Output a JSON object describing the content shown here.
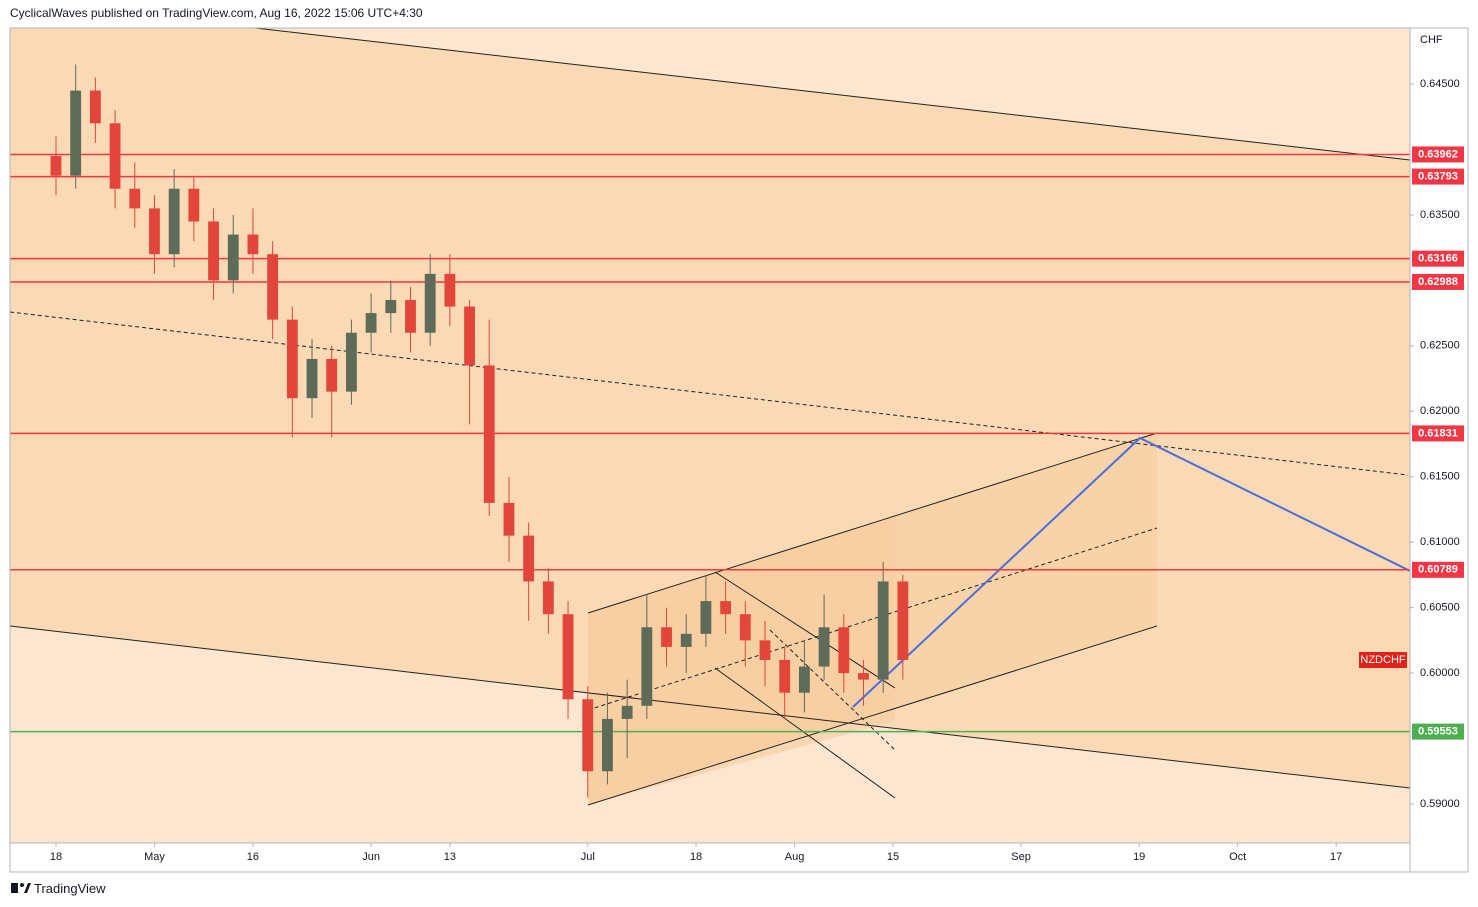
{
  "header": {
    "text": "CyclicalWaves published on TradingView.com, Aug 16, 2022 15:06 UTC+4:30"
  },
  "chart_data": {
    "type": "candlestick",
    "symbol": "NZDCHF",
    "currency": "CHF",
    "x": [
      0,
      2,
      4,
      6,
      8,
      10,
      12,
      14,
      16,
      18,
      20,
      22,
      24,
      26,
      28,
      30,
      32,
      34,
      36,
      38,
      40,
      42,
      44,
      46,
      48,
      50,
      52,
      54,
      56,
      58,
      60,
      62,
      64,
      66,
      68,
      70,
      72,
      74,
      76,
      78,
      80,
      82,
      84,
      86
    ],
    "open": [
      0.6395,
      0.638,
      0.6445,
      0.642,
      0.637,
      0.6355,
      0.632,
      0.637,
      0.6345,
      0.63,
      0.6335,
      0.632,
      0.627,
      0.621,
      0.624,
      0.6215,
      0.626,
      0.6275,
      0.6285,
      0.626,
      0.6305,
      0.628,
      0.6235,
      0.613,
      0.6105,
      0.607,
      0.6045,
      0.598,
      0.5925,
      0.5965,
      0.5975,
      0.6035,
      0.602,
      0.603,
      0.6055,
      0.6045,
      0.6025,
      0.601,
      0.5985,
      0.6005,
      0.6035,
      0.6,
      0.5995,
      0.607
    ],
    "high": [
      0.641,
      0.6465,
      0.6455,
      0.643,
      0.639,
      0.6365,
      0.6385,
      0.638,
      0.6355,
      0.635,
      0.6355,
      0.633,
      0.628,
      0.6255,
      0.625,
      0.627,
      0.629,
      0.63,
      0.6295,
      0.632,
      0.632,
      0.6285,
      0.627,
      0.615,
      0.6115,
      0.608,
      0.6055,
      0.599,
      0.5985,
      0.5995,
      0.606,
      0.605,
      0.6045,
      0.6075,
      0.607,
      0.6055,
      0.604,
      0.602,
      0.6025,
      0.606,
      0.6045,
      0.601,
      0.6085,
      0.6075
    ],
    "low": [
      0.6365,
      0.637,
      0.6405,
      0.6355,
      0.634,
      0.6305,
      0.631,
      0.633,
      0.6285,
      0.629,
      0.6305,
      0.6255,
      0.618,
      0.6195,
      0.618,
      0.6205,
      0.6245,
      0.626,
      0.6245,
      0.625,
      0.6265,
      0.619,
      0.612,
      0.6085,
      0.604,
      0.603,
      0.5965,
      0.5905,
      0.5915,
      0.5935,
      0.5965,
      0.6005,
      0.6,
      0.602,
      0.603,
      0.6005,
      0.599,
      0.5965,
      0.597,
      0.5995,
      0.5985,
      0.5975,
      0.5985,
      0.5995
    ],
    "close": [
      0.638,
      0.6445,
      0.642,
      0.637,
      0.6355,
      0.632,
      0.637,
      0.6345,
      0.63,
      0.6335,
      0.632,
      0.627,
      0.621,
      0.624,
      0.6215,
      0.626,
      0.6275,
      0.6285,
      0.626,
      0.6305,
      0.628,
      0.6235,
      0.613,
      0.6105,
      0.607,
      0.6045,
      0.598,
      0.5925,
      0.5965,
      0.5975,
      0.6035,
      0.602,
      0.603,
      0.6055,
      0.6045,
      0.6025,
      0.601,
      0.5985,
      0.6005,
      0.6035,
      0.6,
      0.5995,
      0.607,
      0.601
    ],
    "up_color": "#5e6b58",
    "down_color": "#e2463b",
    "xlim": [
      -4.67,
      137.5
    ],
    "xticks": [
      {
        "value": 0,
        "label": "18"
      },
      {
        "value": 10,
        "label": "May"
      },
      {
        "value": 20,
        "label": "16"
      },
      {
        "value": 32,
        "label": "Jun"
      },
      {
        "value": 40,
        "label": "13"
      },
      {
        "value": 54,
        "label": "Jul"
      },
      {
        "value": 65,
        "label": "18"
      },
      {
        "value": 75,
        "label": "Aug"
      },
      {
        "value": 85,
        "label": "15"
      },
      {
        "value": 98,
        "label": "Sep"
      },
      {
        "value": 110,
        "label": "19"
      },
      {
        "value": 120,
        "label": "Oct"
      },
      {
        "value": 130,
        "label": "17"
      }
    ],
    "ylim": [
      0.58702,
      0.64928
    ],
    "yticks": [
      {
        "value": 0.645,
        "label": "0.64500"
      },
      {
        "value": 0.635,
        "label": "0.63500"
      },
      {
        "value": 0.625,
        "label": "0.62500"
      },
      {
        "value": 0.62,
        "label": "0.62000"
      },
      {
        "value": 0.615,
        "label": "0.61500"
      },
      {
        "value": 0.61,
        "label": "0.61000"
      },
      {
        "value": 0.605,
        "label": "0.60500"
      },
      {
        "value": 0.6,
        "label": "0.60000"
      },
      {
        "value": 0.59,
        "label": "0.59000"
      }
    ],
    "levels": [
      {
        "value": 0.63962,
        "color": "#f23645"
      },
      {
        "value": 0.63793,
        "color": "#f23645"
      },
      {
        "value": 0.63166,
        "color": "#f23645"
      },
      {
        "value": 0.62988,
        "color": "#f23645"
      },
      {
        "value": 0.61831,
        "color": "#f23645"
      },
      {
        "value": 0.60789,
        "color": "#f23645"
      },
      {
        "value": 0.59553,
        "color": "#4caf50"
      }
    ]
  },
  "footer": {
    "brand": "TradingView"
  }
}
